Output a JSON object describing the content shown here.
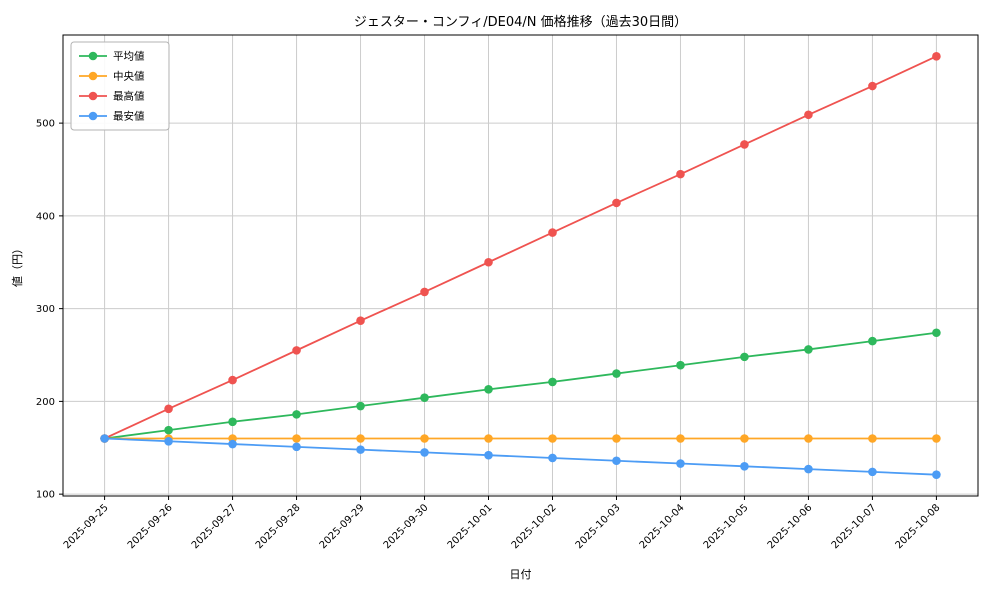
{
  "chart_data": {
    "type": "line",
    "title": "ジェスター・コンフィ/DE04/N 価格推移（過去30日間）",
    "xlabel": "日付",
    "ylabel": "値（円）",
    "categories": [
      "2025-09-25",
      "2025-09-26",
      "2025-09-27",
      "2025-09-28",
      "2025-09-29",
      "2025-09-30",
      "2025-10-01",
      "2025-10-02",
      "2025-10-03",
      "2025-10-04",
      "2025-10-05",
      "2025-10-06",
      "2025-10-07",
      "2025-10-08"
    ],
    "series": [
      {
        "id": "average",
        "name": "平均値",
        "color": "#2eb85c",
        "values": [
          160,
          169,
          178,
          186,
          195,
          204,
          213,
          221,
          230,
          239,
          248,
          256,
          265,
          274
        ]
      },
      {
        "id": "median",
        "name": "中央値",
        "color": "#ffa726",
        "values": [
          160,
          160,
          160,
          160,
          160,
          160,
          160,
          160,
          160,
          160,
          160,
          160,
          160,
          160
        ]
      },
      {
        "id": "max",
        "name": "最高値",
        "color": "#ef5350",
        "values": [
          160,
          192,
          223,
          255,
          287,
          318,
          350,
          382,
          414,
          445,
          477,
          509,
          540,
          572
        ]
      },
      {
        "id": "min",
        "name": "最安値",
        "color": "#4c9cf5",
        "values": [
          160,
          157,
          154,
          151,
          148,
          145,
          142,
          139,
          136,
          133,
          130,
          127,
          124,
          121
        ]
      }
    ],
    "yticks": [
      100,
      200,
      300,
      400,
      500
    ],
    "ylim": [
      98,
      595
    ],
    "grid": true,
    "legend_position": "upper left",
    "style": {
      "grid_color": "#cccccc",
      "axis_color": "#000000",
      "background": "#ffffff",
      "legend_border": "#b3b3b3"
    }
  }
}
